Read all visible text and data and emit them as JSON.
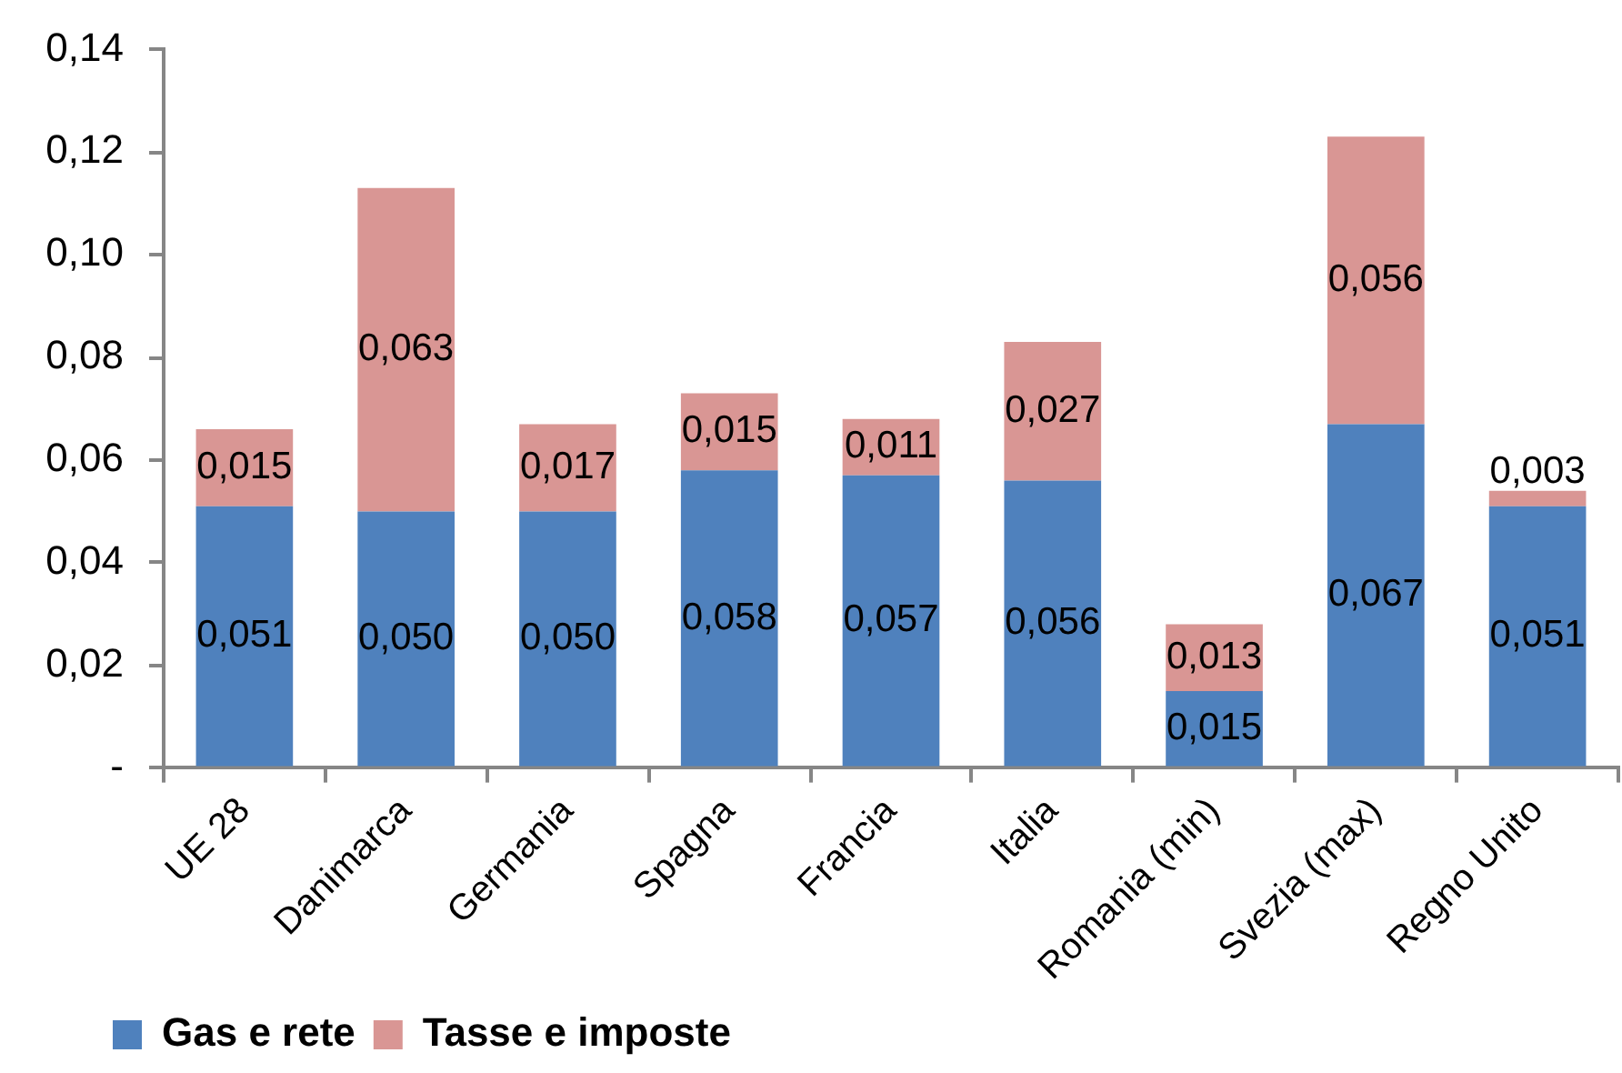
{
  "chart_data": {
    "type": "bar",
    "stacked": true,
    "categories": [
      "UE 28",
      "Danimarca",
      "Germania",
      "Spagna",
      "Francia",
      "Italia",
      "Romania (min)",
      "Svezia (max)",
      "Regno Unito"
    ],
    "series": [
      {
        "name": "Gas e rete",
        "color": "#4f81bd",
        "values": [
          0.051,
          0.05,
          0.05,
          0.058,
          0.057,
          0.056,
          0.015,
          0.067,
          0.051
        ],
        "value_labels": [
          "0,051",
          "0,050",
          "0,050",
          "0,058",
          "0,057",
          "0,056",
          "0,015",
          "0,067",
          "0,051"
        ]
      },
      {
        "name": "Tasse e imposte",
        "color": "#d99694",
        "values": [
          0.015,
          0.063,
          0.017,
          0.015,
          0.011,
          0.027,
          0.013,
          0.056,
          0.003
        ],
        "value_labels": [
          "0,015",
          "0,063",
          "0,017",
          "0,015",
          "0,011",
          "0,027",
          "0,013",
          "0,056",
          "0,003"
        ]
      }
    ],
    "ylim": [
      0,
      0.14
    ],
    "yticks": [
      {
        "value": 0,
        "label": "-"
      },
      {
        "value": 0.02,
        "label": "0,02"
      },
      {
        "value": 0.04,
        "label": "0,04"
      },
      {
        "value": 0.06,
        "label": "0,06"
      },
      {
        "value": 0.08,
        "label": "0,08"
      },
      {
        "value": 0.1,
        "label": "0,10"
      },
      {
        "value": 0.12,
        "label": "0,12"
      },
      {
        "value": 0.14,
        "label": "0,14"
      }
    ],
    "legend": "bottom left"
  }
}
